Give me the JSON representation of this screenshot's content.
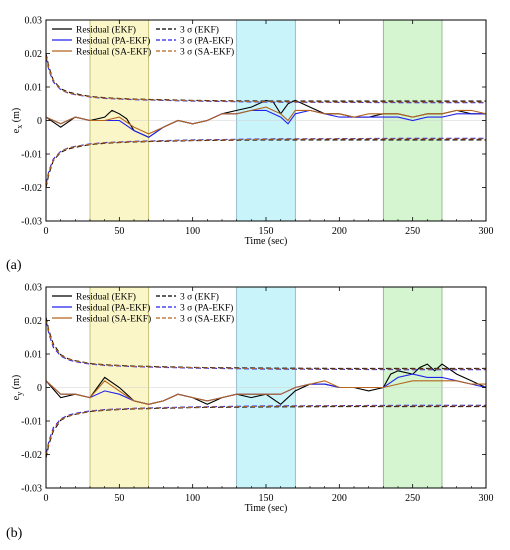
{
  "panel_labels": [
    "(a)",
    "(b)"
  ],
  "chart_data": [
    {
      "type": "line",
      "panel": "(a)",
      "xlabel": "Time (sec)",
      "ylabel": "e_x (m)",
      "ylabel_main": "e",
      "ylabel_sub": "x",
      "ylabel_unit": "(m)",
      "xlim": [
        0,
        300
      ],
      "ylim": [
        -0.03,
        0.03
      ],
      "xticks": [
        0,
        50,
        100,
        150,
        200,
        250,
        300
      ],
      "yticks": [
        -0.03,
        -0.02,
        -0.01,
        0,
        0.01,
        0.02,
        0.03
      ],
      "ytick_labels": [
        "-0.03",
        "-0.02",
        "-0.01",
        "0",
        "0.01",
        "0.02",
        "0.03"
      ],
      "grid": false,
      "legend_position": "top-left",
      "legend": [
        {
          "label": "Residual (EKF)",
          "color": "#000000",
          "dash": false
        },
        {
          "label": "3 σ (EKF)",
          "color": "#000000",
          "dash": true
        },
        {
          "label": "Residual (PA-EKF)",
          "color": "#2222ee",
          "dash": false
        },
        {
          "label": "3 σ (PA-EKF)",
          "color": "#2222ee",
          "dash": true
        },
        {
          "label": "Residual (SA-EKF)",
          "color": "#b5651d",
          "dash": false
        },
        {
          "label": "3 σ (SA-EKF)",
          "color": "#b5651d",
          "dash": true
        }
      ],
      "shaded_regions": [
        {
          "x": [
            30,
            70
          ],
          "color": "#fbf6c8",
          "edge": "#b8b86a"
        },
        {
          "x": [
            130,
            170
          ],
          "color": "#c9f4fa",
          "edge": "#7aaec0"
        },
        {
          "x": [
            230,
            270
          ],
          "color": "#d4f5d0",
          "edge": "#84b07a"
        }
      ],
      "series": [
        {
          "name": "Residual (EKF)",
          "color": "#000000",
          "x": [
            0,
            10,
            20,
            30,
            40,
            45,
            50,
            55,
            60,
            65,
            70,
            80,
            90,
            100,
            110,
            120,
            130,
            140,
            145,
            150,
            155,
            160,
            165,
            170,
            175,
            180,
            190,
            200,
            210,
            220,
            230,
            240,
            250,
            260,
            270,
            280,
            290,
            300
          ],
          "y": [
            0.001,
            -0.002,
            0.001,
            0.0,
            0.001,
            0.003,
            0.002,
            0.0005,
            -0.003,
            -0.004,
            -0.005,
            -0.002,
            0.0,
            -0.001,
            0.0,
            0.002,
            0.003,
            0.004,
            0.005,
            0.006,
            0.0055,
            0.002,
            0.005,
            0.006,
            0.005,
            0.004,
            0.002,
            0.002,
            0.001,
            0.001,
            0.002,
            0.002,
            0.001,
            0.002,
            0.002,
            0.003,
            0.002,
            0.002
          ]
        },
        {
          "name": "Residual (PA-EKF)",
          "color": "#2222ee",
          "x": [
            0,
            10,
            20,
            30,
            40,
            50,
            60,
            70,
            80,
            90,
            100,
            110,
            120,
            130,
            140,
            150,
            160,
            165,
            170,
            180,
            190,
            200,
            210,
            220,
            230,
            240,
            250,
            260,
            270,
            280,
            290,
            300
          ],
          "y": [
            0.001,
            -0.001,
            0.001,
            0.0,
            0.0,
            0.0,
            -0.003,
            -0.005,
            -0.002,
            0.0,
            -0.001,
            0.0,
            0.002,
            0.002,
            0.003,
            0.003,
            0.001,
            -0.001,
            0.002,
            0.003,
            0.002,
            0.001,
            0.001,
            0.001,
            0.001,
            0.001,
            0.0,
            0.001,
            0.001,
            0.002,
            0.002,
            0.002
          ]
        },
        {
          "name": "Residual (SA-EKF)",
          "color": "#b5651d",
          "x": [
            0,
            10,
            20,
            30,
            40,
            50,
            60,
            70,
            80,
            90,
            100,
            110,
            120,
            130,
            140,
            150,
            160,
            165,
            170,
            180,
            190,
            200,
            210,
            220,
            230,
            240,
            250,
            260,
            270,
            280,
            290,
            300
          ],
          "y": [
            0.001,
            -0.001,
            0.001,
            0.0,
            0.0,
            0.001,
            -0.002,
            -0.004,
            -0.002,
            0.0,
            -0.001,
            0.0,
            0.002,
            0.002,
            0.003,
            0.004,
            0.002,
            0.0,
            0.003,
            0.003,
            0.002,
            0.002,
            0.001,
            0.002,
            0.002,
            0.002,
            0.001,
            0.002,
            0.002,
            0.003,
            0.003,
            0.002
          ]
        },
        {
          "name": "3 σ (EKF)",
          "color": "#000000",
          "dashed": true,
          "mirror": true,
          "x": [
            0,
            2,
            5,
            10,
            15,
            20,
            30,
            40,
            60,
            80,
            100,
            150,
            200,
            250,
            300
          ],
          "y": [
            0.02,
            0.016,
            0.012,
            0.0095,
            0.0085,
            0.008,
            0.0072,
            0.0068,
            0.0064,
            0.0062,
            0.006,
            0.0058,
            0.0058,
            0.0058,
            0.0058
          ]
        },
        {
          "name": "3 σ (PA-EKF)",
          "color": "#2222ee",
          "dashed": true,
          "mirror": true,
          "x": [
            0,
            2,
            5,
            10,
            15,
            20,
            30,
            40,
            60,
            80,
            100,
            150,
            200,
            250,
            300
          ],
          "y": [
            0.019,
            0.015,
            0.0115,
            0.0092,
            0.0082,
            0.0077,
            0.007,
            0.0066,
            0.0062,
            0.006,
            0.0058,
            0.0055,
            0.0054,
            0.0053,
            0.0053
          ]
        },
        {
          "name": "3 σ (SA-EKF)",
          "color": "#b5651d",
          "dashed": true,
          "mirror": true,
          "x": [
            0,
            2,
            5,
            10,
            15,
            20,
            30,
            40,
            60,
            80,
            100,
            150,
            200,
            250,
            300
          ],
          "y": [
            0.0195,
            0.0155,
            0.0118,
            0.0093,
            0.0083,
            0.0078,
            0.0071,
            0.0067,
            0.0063,
            0.0061,
            0.0059,
            0.0056,
            0.0055,
            0.0055,
            0.0055
          ]
        }
      ]
    },
    {
      "type": "line",
      "panel": "(b)",
      "xlabel": "Time (sec)",
      "ylabel": "e_y (m)",
      "ylabel_main": "e",
      "ylabel_sub": "y",
      "ylabel_unit": "(m)",
      "xlim": [
        0,
        300
      ],
      "ylim": [
        -0.03,
        0.03
      ],
      "xticks": [
        0,
        50,
        100,
        150,
        200,
        250,
        300
      ],
      "yticks": [
        -0.03,
        -0.02,
        -0.01,
        0,
        0.01,
        0.02,
        0.03
      ],
      "ytick_labels": [
        "-0.03",
        "-0.02",
        "-0.01",
        "0",
        "0.01",
        "0.02",
        "0.03"
      ],
      "grid": false,
      "legend_position": "top-left",
      "legend": [
        {
          "label": "Residual (EKF)",
          "color": "#000000",
          "dash": false
        },
        {
          "label": "3 σ (EKF)",
          "color": "#000000",
          "dash": true
        },
        {
          "label": "Residual (PA-EKF)",
          "color": "#2222ee",
          "dash": false
        },
        {
          "label": "3 σ (PA-EKF)",
          "color": "#2222ee",
          "dash": true
        },
        {
          "label": "Residual (SA-EKF)",
          "color": "#b5651d",
          "dash": false
        },
        {
          "label": "3 σ (SA-EKF)",
          "color": "#b5651d",
          "dash": true
        }
      ],
      "shaded_regions": [
        {
          "x": [
            30,
            70
          ],
          "color": "#fbf6c8",
          "edge": "#b8b86a"
        },
        {
          "x": [
            130,
            170
          ],
          "color": "#c9f4fa",
          "edge": "#7aaec0"
        },
        {
          "x": [
            230,
            270
          ],
          "color": "#d4f5d0",
          "edge": "#84b07a"
        }
      ],
      "series": [
        {
          "name": "Residual (EKF)",
          "color": "#000000",
          "x": [
            0,
            10,
            20,
            30,
            35,
            40,
            50,
            60,
            70,
            80,
            90,
            100,
            110,
            120,
            130,
            140,
            150,
            160,
            170,
            180,
            190,
            200,
            210,
            220,
            230,
            235,
            240,
            250,
            255,
            260,
            265,
            270,
            280,
            290,
            300
          ],
          "y": [
            0.002,
            -0.003,
            -0.002,
            -0.003,
            0.0,
            0.003,
            0.0,
            -0.004,
            -0.005,
            -0.004,
            -0.002,
            -0.003,
            -0.005,
            -0.003,
            -0.002,
            -0.003,
            -0.002,
            -0.005,
            -0.001,
            0.001,
            0.001,
            0.0,
            0.0,
            -0.001,
            0.0,
            0.004,
            0.005,
            0.004,
            0.006,
            0.007,
            0.005,
            0.007,
            0.004,
            0.002,
            0.0
          ]
        },
        {
          "name": "Residual (PA-EKF)",
          "color": "#2222ee",
          "x": [
            0,
            10,
            20,
            30,
            40,
            50,
            60,
            70,
            80,
            90,
            100,
            110,
            120,
            130,
            140,
            150,
            160,
            170,
            180,
            190,
            200,
            210,
            220,
            230,
            240,
            250,
            260,
            270,
            280,
            290,
            300
          ],
          "y": [
            0.002,
            -0.002,
            -0.002,
            -0.003,
            -0.001,
            -0.002,
            -0.004,
            -0.005,
            -0.004,
            -0.002,
            -0.003,
            -0.004,
            -0.003,
            -0.002,
            -0.002,
            -0.002,
            -0.002,
            0.0,
            0.001,
            0.001,
            0.0,
            0.0,
            0.0,
            0.0,
            0.003,
            0.004,
            0.003,
            0.003,
            0.002,
            0.001,
            0.0
          ]
        },
        {
          "name": "Residual (SA-EKF)",
          "color": "#b5651d",
          "x": [
            0,
            10,
            20,
            30,
            40,
            50,
            60,
            70,
            80,
            90,
            100,
            110,
            120,
            130,
            140,
            150,
            160,
            170,
            180,
            190,
            200,
            210,
            220,
            230,
            240,
            250,
            260,
            270,
            280,
            290,
            300
          ],
          "y": [
            0.002,
            -0.002,
            -0.002,
            -0.003,
            0.002,
            -0.001,
            -0.004,
            -0.005,
            -0.004,
            -0.002,
            -0.003,
            -0.004,
            -0.003,
            -0.002,
            -0.002,
            -0.002,
            -0.002,
            0.0,
            0.001,
            0.002,
            0.0,
            0.0,
            0.0,
            0.0,
            0.001,
            0.002,
            0.002,
            0.002,
            0.002,
            0.001,
            0.001
          ]
        },
        {
          "name": "3 σ (EKF)",
          "color": "#000000",
          "dashed": true,
          "mirror": true,
          "x": [
            0,
            2,
            5,
            10,
            15,
            20,
            30,
            40,
            60,
            80,
            100,
            150,
            200,
            250,
            300
          ],
          "y": [
            0.021,
            0.017,
            0.013,
            0.0098,
            0.0086,
            0.008,
            0.0072,
            0.0068,
            0.0064,
            0.0062,
            0.006,
            0.0058,
            0.0057,
            0.0057,
            0.0057
          ]
        },
        {
          "name": "3 σ (PA-EKF)",
          "color": "#2222ee",
          "dashed": true,
          "mirror": true,
          "x": [
            0,
            2,
            5,
            10,
            15,
            20,
            30,
            40,
            60,
            80,
            100,
            150,
            200,
            250,
            300
          ],
          "y": [
            0.02,
            0.016,
            0.012,
            0.0094,
            0.0083,
            0.0077,
            0.007,
            0.0066,
            0.0062,
            0.006,
            0.0058,
            0.0055,
            0.0054,
            0.0053,
            0.0053
          ]
        },
        {
          "name": "3 σ (SA-EKF)",
          "color": "#b5651d",
          "dashed": true,
          "mirror": true,
          "x": [
            0,
            2,
            5,
            10,
            15,
            20,
            30,
            40,
            60,
            80,
            100,
            150,
            200,
            250,
            300
          ],
          "y": [
            0.0205,
            0.0165,
            0.0125,
            0.0096,
            0.0085,
            0.0079,
            0.0071,
            0.0067,
            0.0063,
            0.0061,
            0.0059,
            0.0056,
            0.0055,
            0.0055,
            0.0055
          ]
        }
      ]
    }
  ]
}
